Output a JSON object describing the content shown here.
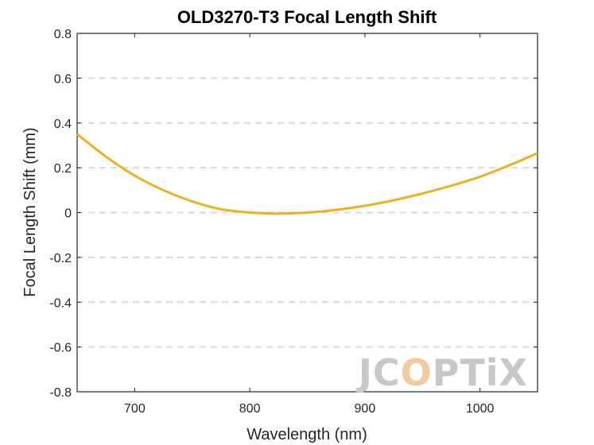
{
  "chart_data": {
    "type": "line",
    "title": "OLD3270-T3 Focal Length Shift",
    "xlabel": "Wavelength (nm)",
    "ylabel": "Focal Length Shift (mm)",
    "xlim": [
      650,
      1050
    ],
    "ylim": [
      -0.8,
      0.8
    ],
    "xticks": [
      700,
      800,
      900,
      1000
    ],
    "yticks": [
      -0.8,
      -0.6,
      -0.4,
      -0.2,
      0,
      0.2,
      0.4,
      0.6,
      0.8
    ],
    "grid": "y-dashed",
    "series": [
      {
        "color": "#EDB120",
        "x": [
          650,
          675,
          700,
          725,
          750,
          775,
          800,
          825,
          850,
          875,
          900,
          925,
          950,
          975,
          1000,
          1025,
          1050
        ],
        "y": [
          0.35,
          0.25,
          0.165,
          0.1,
          0.05,
          0.015,
          0.0,
          -0.005,
          0.0,
          0.012,
          0.03,
          0.055,
          0.085,
          0.12,
          0.16,
          0.21,
          0.265
        ]
      }
    ]
  },
  "watermark": {
    "text_a": "JC",
    "text_b": "O",
    "text_c": "PTiX",
    "color_main": "#c8c8c8",
    "color_accent": "#f2c9a0"
  }
}
